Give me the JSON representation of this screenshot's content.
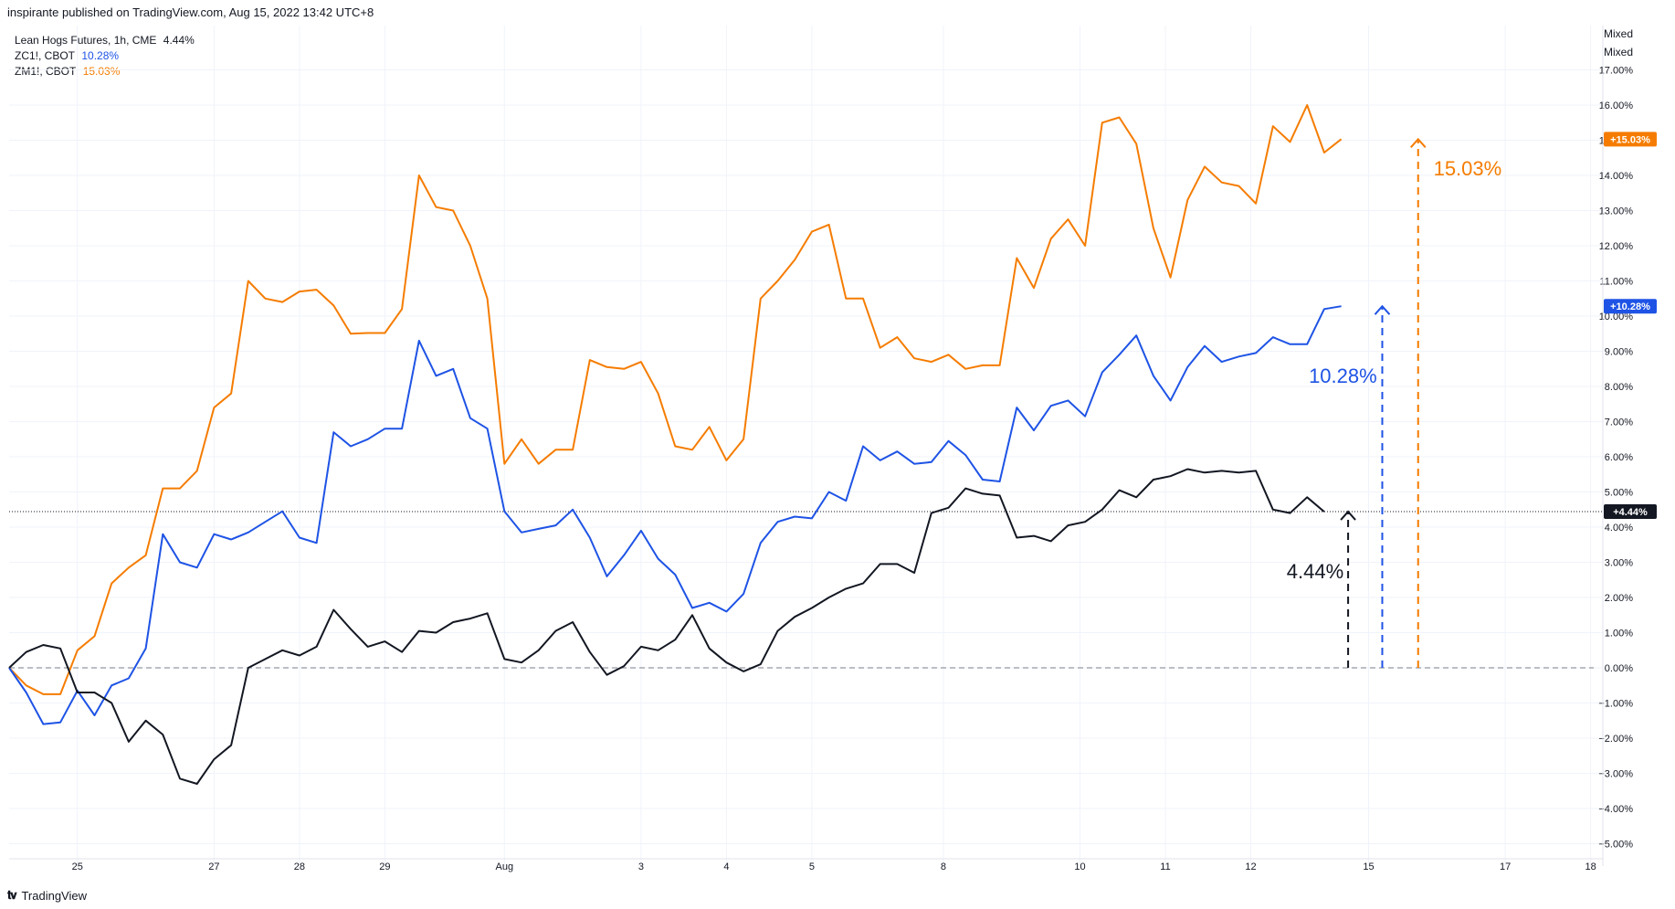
{
  "header": {
    "published": "inspirante published on TradingView.com, Aug 15, 2022 13:42 UTC+8"
  },
  "legend": [
    {
      "name": "Lean Hogs Futures, 1h, CME",
      "value": "4.44%",
      "color": "#131722"
    },
    {
      "name": "ZC1!, CBOT",
      "value": "10.28%",
      "color": "#1e53e5"
    },
    {
      "name": "ZM1!, CBOT",
      "value": "15.03%",
      "color": "#f57c00"
    }
  ],
  "scale_mode": [
    "Mixed",
    "Mixed"
  ],
  "footer": {
    "brand": "TradingView"
  },
  "chart_data": {
    "type": "line",
    "ylim": [
      -5.3,
      17.8
    ],
    "y_ticks": [
      17,
      16,
      15,
      14,
      13,
      12,
      11,
      10,
      9,
      8,
      7,
      6,
      5,
      4,
      3,
      2,
      1,
      0,
      -1,
      -2,
      -3,
      -4,
      -5
    ],
    "y_tick_labels": [
      "17.00%",
      "16.00%",
      "15.00%",
      "14.00%",
      "13.00%",
      "12.00%",
      "11.00%",
      "10.00%",
      "9.00%",
      "8.00%",
      "7.00%",
      "6.00%",
      "5.00%",
      "4.00%",
      "3.00%",
      "2.00%",
      "1.00%",
      "0.00%",
      "−1.00%",
      "−2.00%",
      "−3.00%",
      "−4.00%",
      "−5.00%"
    ],
    "x_ticks": [
      {
        "label": "25",
        "idx": 4
      },
      {
        "label": "27",
        "idx": 12
      },
      {
        "label": "28",
        "idx": 17
      },
      {
        "label": "29",
        "idx": 22
      },
      {
        "label": "Aug",
        "idx": 29
      },
      {
        "label": "3",
        "idx": 37
      },
      {
        "label": "4",
        "idx": 42
      },
      {
        "label": "5",
        "idx": 47
      },
      {
        "label": "8",
        "idx": 54.7
      },
      {
        "label": "10",
        "idx": 62.7
      },
      {
        "label": "11",
        "idx": 67.7
      },
      {
        "label": "12",
        "idx": 72.7
      },
      {
        "label": "15",
        "idx": 79.6
      },
      {
        "label": "17",
        "idx": 87.6
      },
      {
        "label": "18",
        "idx": 92.6
      }
    ],
    "series": [
      {
        "name": "ZM1!, CBOT",
        "color": "#f57c00",
        "last": "+15.03%",
        "values": [
          0,
          -0.5,
          -0.75,
          -0.75,
          0.5,
          0.9,
          2.4,
          2.85,
          3.2,
          5.1,
          5.1,
          5.6,
          7.4,
          7.8,
          11.0,
          10.5,
          10.4,
          10.7,
          10.75,
          10.3,
          9.5,
          9.52,
          9.52,
          10.2,
          14.0,
          13.1,
          13.0,
          12.0,
          10.5,
          5.8,
          6.5,
          5.8,
          6.2,
          6.2,
          8.75,
          8.55,
          8.5,
          8.7,
          7.8,
          6.3,
          6.2,
          6.85,
          5.9,
          6.5,
          10.5,
          11.0,
          11.6,
          12.4,
          12.6,
          10.5,
          10.5,
          9.1,
          9.4,
          8.8,
          8.7,
          8.9,
          8.5,
          8.6,
          8.6,
          11.65,
          10.8,
          12.2,
          12.75,
          12.0,
          15.5,
          15.65,
          14.9,
          12.5,
          11.1,
          13.3,
          14.25,
          13.8,
          13.7,
          13.2,
          15.4,
          14.95,
          16.0,
          14.65,
          15.03
        ]
      },
      {
        "name": "ZC1!, CBOT",
        "color": "#1e53e5",
        "last": "+10.28%",
        "values": [
          0,
          -0.7,
          -1.6,
          -1.55,
          -0.65,
          -1.35,
          -0.5,
          -0.3,
          0.55,
          3.8,
          3.0,
          2.85,
          3.8,
          3.65,
          3.85,
          4.15,
          4.45,
          3.7,
          3.55,
          6.7,
          6.3,
          6.5,
          6.8,
          6.8,
          9.3,
          8.3,
          8.5,
          7.1,
          6.8,
          4.45,
          3.85,
          3.95,
          4.05,
          4.5,
          3.7,
          2.6,
          3.2,
          3.9,
          3.1,
          2.65,
          1.7,
          1.85,
          1.6,
          2.1,
          3.55,
          4.15,
          4.3,
          4.25,
          5.0,
          4.75,
          6.3,
          5.9,
          6.15,
          5.8,
          5.85,
          6.45,
          6.05,
          5.35,
          5.3,
          7.4,
          6.75,
          7.45,
          7.6,
          7.15,
          8.4,
          8.9,
          9.45,
          8.3,
          7.6,
          8.55,
          9.15,
          8.7,
          8.85,
          8.95,
          9.4,
          9.2,
          9.2,
          10.2,
          10.28
        ]
      },
      {
        "name": "Lean Hogs Futures, 1h, CME",
        "color": "#131722",
        "last": "+4.44%",
        "values": [
          0,
          0.45,
          0.65,
          0.55,
          -0.7,
          -0.7,
          -1.0,
          -2.1,
          -1.5,
          -1.9,
          -3.15,
          -3.3,
          -2.6,
          -2.2,
          0,
          0.25,
          0.5,
          0.35,
          0.6,
          1.65,
          1.1,
          0.6,
          0.75,
          0.45,
          1.05,
          1.0,
          1.3,
          1.4,
          1.55,
          0.25,
          0.15,
          0.5,
          1.05,
          1.3,
          0.45,
          -0.2,
          0.05,
          0.6,
          0.5,
          0.8,
          1.5,
          0.55,
          0.15,
          -0.1,
          0.1,
          1.05,
          1.45,
          1.7,
          2.0,
          2.25,
          2.4,
          2.95,
          2.95,
          2.7,
          4.4,
          4.55,
          5.1,
          4.95,
          4.9,
          3.7,
          3.75,
          3.6,
          4.05,
          4.15,
          4.5,
          5.05,
          4.85,
          5.35,
          5.45,
          5.65,
          5.55,
          5.6,
          5.55,
          5.6,
          4.5,
          4.4,
          4.85,
          4.44
        ]
      }
    ],
    "annotations": [
      {
        "text": "15.03%",
        "value": 15.03,
        "color": "#f57c00",
        "idx": 82.5,
        "label_idx": 83.4,
        "label_value": 14.0
      },
      {
        "text": "10.28%",
        "value": 10.28,
        "color": "#1e53e5",
        "idx": 80.4,
        "label_idx": 76.1,
        "label_value": 8.1
      },
      {
        "text": "4.44%",
        "value": 4.44,
        "color": "#131722",
        "idx": 78.4,
        "label_idx": 74.8,
        "label_value": 2.55
      }
    ],
    "grid": true
  }
}
